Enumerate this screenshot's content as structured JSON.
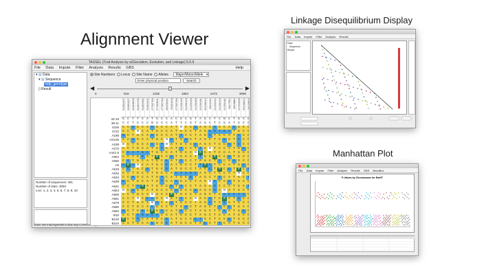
{
  "headings": {
    "alignment": "Alignment Viewer",
    "ld": "Linkage Disequilibrium Display",
    "manhattan": "Manhattan Plot"
  },
  "main_window": {
    "title": "TASSEL (Trait Analysis by aSSociation, Evolution, and Linkage) 5.0.9",
    "menu": [
      "File",
      "Data",
      "Impute",
      "Filter",
      "Analysis",
      "Results",
      "GBS"
    ],
    "help": "Help",
    "tree": {
      "data": "Data",
      "sequence": "Sequence",
      "selected": "mdp_genotype",
      "result": "Result"
    },
    "info": {
      "sequences": "Number of sequences: 281",
      "sites": "Number of sites: 3093",
      "loci": "Loci: 1, 2, 3, 4, 5, 6, 7, 8, 9, 10"
    },
    "status": "class net.maizegenetics.dna.snp.CoreGenotypeTable",
    "controls": {
      "site_numbers": "Site Numbers",
      "locus": "Locus",
      "site_name": "Site Name",
      "alleles": "Alleles",
      "dropdown": "Major/Minor/Allele",
      "position_placeholder": "Enter physical position",
      "search": "Search"
    },
    "slider_fraction": 0.5,
    "ticks": [
      "0",
      "618",
      "1236",
      "1854",
      "2472",
      "3090"
    ],
    "site_headers": [
      "20281307",
      "20281307",
      "20453830",
      "20451795",
      "20452981",
      "20452001",
      "27782780",
      "27782801",
      "27782740",
      "28020091",
      "20010011",
      "27782780",
      "21230130",
      "21230193",
      "21226160",
      "21230180",
      "21230181",
      "26130012",
      "2815194",
      "21231015",
      "21230193",
      "21230181",
      "2817350",
      "2816880",
      "21761956",
      "26130812",
      "26130811"
    ],
    "taxa": [
      "33-16",
      "38-11",
      "4226",
      "4722",
      "A188",
      "A214N",
      "A239",
      "A272",
      "A441-5",
      "A554",
      "A556",
      "A6",
      "A619",
      "A632",
      "A634",
      "A635",
      "A641",
      "A654",
      "A659",
      "A661",
      "A679",
      "A680",
      "A682",
      "B10",
      "B103",
      "B104",
      "B105",
      "B109"
    ],
    "colors": {
      "major": "#f2d74c",
      "minor": "#4ea5e0",
      "het": "#2e7d4f",
      "missing": "#ffffff"
    }
  },
  "ld_window": {
    "menu": [
      "File",
      "Data",
      "Impute",
      "Filter",
      "Analysis",
      "Results"
    ],
    "tree": [
      "Data",
      "Sequence",
      "Result"
    ]
  },
  "manhattan_window": {
    "menu": [
      "File",
      "Data",
      "Impute",
      "Filter",
      "Analysis",
      "Results",
      "GBS",
      "BeadBox"
    ],
    "plot_title": "P-Values by Chromosome for EarHT"
  }
}
